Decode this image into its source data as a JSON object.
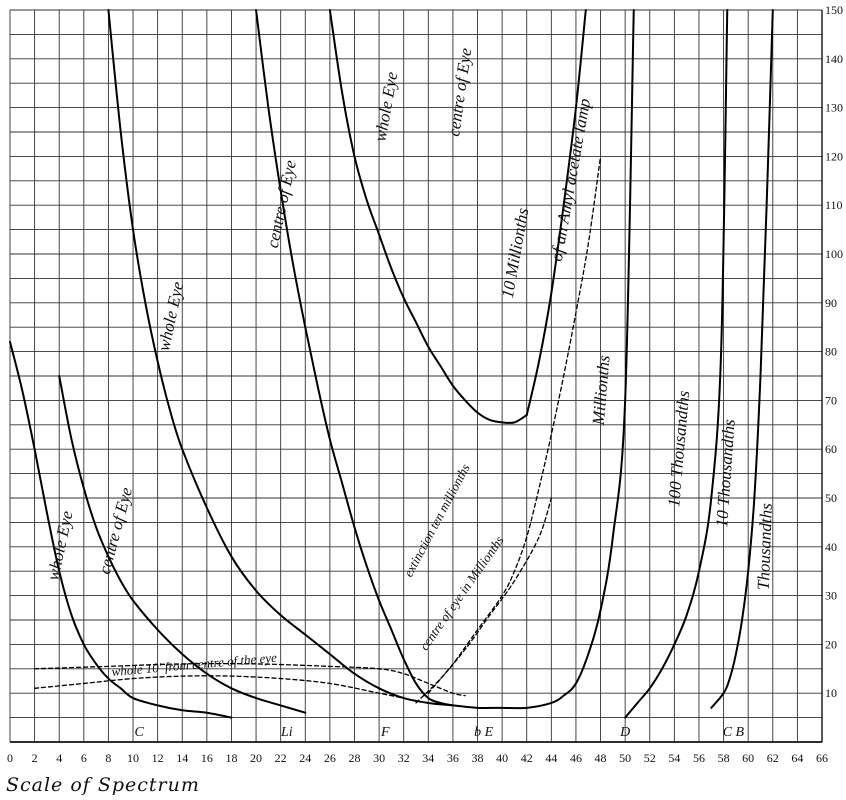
{
  "chart_data": {
    "type": "line",
    "xlabel": "Scale of Spectrum",
    "xlim": [
      0,
      66
    ],
    "ylim": [
      0,
      150
    ],
    "grid": true,
    "x_ticks": [
      0,
      2,
      4,
      6,
      8,
      10,
      12,
      14,
      16,
      18,
      20,
      22,
      24,
      26,
      28,
      30,
      32,
      34,
      36,
      38,
      40,
      42,
      44,
      46,
      48,
      50,
      52,
      54,
      56,
      58,
      60,
      62,
      64,
      66
    ],
    "y_ticks": [
      10,
      20,
      30,
      40,
      50,
      60,
      70,
      80,
      90,
      100,
      110,
      120,
      130,
      140,
      150
    ],
    "spectral_lines": [
      {
        "label": "C",
        "x": 10.5
      },
      {
        "label": "Li",
        "x": 22.5
      },
      {
        "label": "F",
        "x": 30.5
      },
      {
        "label": "b E",
        "x": 38.5
      },
      {
        "label": "D",
        "x": 50.0
      },
      {
        "label": "C B",
        "x": 58.8
      }
    ],
    "series": [
      {
        "label": "whole Eye",
        "style": "solid",
        "points": [
          [
            0,
            82
          ],
          [
            1,
            72
          ],
          [
            2,
            60
          ],
          [
            3,
            47
          ],
          [
            4,
            35
          ],
          [
            5,
            26
          ],
          [
            6,
            20
          ],
          [
            7,
            16
          ],
          [
            8,
            13
          ],
          [
            9,
            11
          ],
          [
            10,
            9
          ],
          [
            12,
            7.5
          ],
          [
            14,
            6.5
          ],
          [
            16,
            6
          ],
          [
            18,
            5
          ]
        ]
      },
      {
        "label": "centre of Eye",
        "style": "solid",
        "points": [
          [
            4,
            75
          ],
          [
            5,
            62
          ],
          [
            6,
            52
          ],
          [
            7,
            44
          ],
          [
            8,
            38
          ],
          [
            9,
            33
          ],
          [
            10,
            29
          ],
          [
            12,
            23
          ],
          [
            14,
            18
          ],
          [
            16,
            14
          ],
          [
            18,
            11
          ],
          [
            20,
            9
          ],
          [
            22,
            7.5
          ],
          [
            24,
            6
          ]
        ]
      },
      {
        "label": "whole Eye",
        "style": "solid",
        "points": [
          [
            8,
            150
          ],
          [
            9,
            125
          ],
          [
            10,
            105
          ],
          [
            11,
            90
          ],
          [
            12,
            78
          ],
          [
            13,
            68
          ],
          [
            14,
            60
          ],
          [
            16,
            48
          ],
          [
            18,
            38
          ],
          [
            20,
            31
          ],
          [
            22,
            26
          ],
          [
            24,
            22
          ],
          [
            26,
            18
          ],
          [
            28,
            14
          ],
          [
            30,
            11
          ],
          [
            32,
            9
          ],
          [
            34,
            8
          ],
          [
            36,
            7.5
          ],
          [
            38,
            7
          ],
          [
            40,
            7
          ],
          [
            42,
            7
          ],
          [
            44,
            8
          ],
          [
            45,
            9.5
          ],
          [
            46,
            12
          ],
          [
            47,
            18
          ],
          [
            48,
            27
          ],
          [
            49,
            42
          ],
          [
            50,
            70
          ],
          [
            50.7,
            150
          ]
        ]
      },
      {
        "label": "centre of Eye",
        "style": "solid",
        "points": [
          [
            20,
            150
          ],
          [
            21,
            130
          ],
          [
            22,
            113
          ],
          [
            23,
            98
          ],
          [
            24,
            85
          ],
          [
            25,
            73
          ],
          [
            26,
            62
          ],
          [
            27,
            53
          ],
          [
            28,
            44
          ],
          [
            29,
            36
          ],
          [
            30,
            29
          ],
          [
            31,
            23
          ],
          [
            32,
            17
          ],
          [
            33,
            12
          ],
          [
            34,
            9
          ],
          [
            35,
            8
          ],
          [
            36,
            7.5
          ]
        ]
      },
      {
        "label": "whole Eye",
        "style": "solid",
        "points": [
          [
            26,
            150
          ],
          [
            27,
            133
          ],
          [
            28,
            120
          ],
          [
            29,
            111
          ],
          [
            30,
            104
          ],
          [
            31,
            97
          ],
          [
            32,
            91
          ],
          [
            33,
            86
          ],
          [
            34,
            81
          ],
          [
            35,
            77
          ],
          [
            36,
            73
          ],
          [
            37,
            70
          ],
          [
            38,
            67.5
          ],
          [
            39,
            66
          ],
          [
            40,
            65.5
          ],
          [
            41,
            65.5
          ],
          [
            42,
            67
          ]
        ]
      },
      {
        "label": "centre of Eye",
        "style": "solid",
        "points": [
          [
            42,
            67
          ],
          [
            43,
            78
          ],
          [
            44,
            92
          ],
          [
            45,
            110
          ],
          [
            46,
            130
          ],
          [
            46.8,
            150
          ]
        ]
      },
      {
        "label": "100 Thousandths",
        "style": "solid",
        "points": [
          [
            50,
            5
          ],
          [
            51,
            8
          ],
          [
            52,
            11
          ],
          [
            53,
            15
          ],
          [
            54,
            20
          ],
          [
            55,
            26
          ],
          [
            56,
            35
          ],
          [
            57,
            50
          ],
          [
            57.8,
            80
          ],
          [
            58.3,
            150
          ]
        ]
      },
      {
        "label": "10 Thousandths",
        "style": "solid",
        "points": [
          [
            57,
            7
          ],
          [
            58,
            10
          ],
          [
            58.5,
            13
          ],
          [
            59,
            18
          ],
          [
            59.5,
            25
          ],
          [
            60,
            35
          ],
          [
            60.5,
            50
          ],
          [
            61,
            75
          ],
          [
            61.5,
            110
          ],
          [
            62,
            150
          ]
        ]
      },
      {
        "label": "",
        "style": "dashed",
        "points": [
          [
            2,
            11
          ],
          [
            6,
            12
          ],
          [
            10,
            13
          ],
          [
            14,
            13.5
          ],
          [
            18,
            13.5
          ],
          [
            22,
            13
          ],
          [
            26,
            12
          ],
          [
            30,
            10
          ],
          [
            32,
            9
          ]
        ]
      },
      {
        "label": "whole 10' from centre of the eye",
        "style": "dashed",
        "points": [
          [
            2,
            15
          ],
          [
            8,
            15.5
          ],
          [
            14,
            16
          ],
          [
            20,
            16
          ],
          [
            26,
            15.5
          ],
          [
            30,
            15
          ],
          [
            32,
            14
          ],
          [
            34,
            12
          ],
          [
            36,
            10
          ],
          [
            37,
            9.5
          ]
        ]
      },
      {
        "label": "extinction ten millionths",
        "style": "dashed",
        "points": [
          [
            34,
            10
          ],
          [
            36,
            16
          ],
          [
            38,
            23
          ],
          [
            40,
            30
          ],
          [
            41,
            35
          ],
          [
            42,
            42
          ],
          [
            43,
            52
          ],
          [
            44,
            63
          ],
          [
            45,
            75
          ],
          [
            46,
            88
          ],
          [
            47,
            102
          ],
          [
            48,
            120
          ]
        ]
      },
      {
        "label": "centre of eye in Millionths",
        "style": "dashed",
        "points": [
          [
            33,
            8
          ],
          [
            35,
            13
          ],
          [
            37,
            19
          ],
          [
            39,
            26
          ],
          [
            41,
            33
          ],
          [
            43,
            42
          ],
          [
            44,
            50
          ]
        ]
      }
    ],
    "labels": [
      {
        "text": "whole Eye",
        "x": 4.5,
        "y": 40,
        "rotate": -78
      },
      {
        "text": "centre of Eye",
        "x": 9,
        "y": 43,
        "rotate": -75
      },
      {
        "text": "whole Eye",
        "x": 13.5,
        "y": 87,
        "rotate": -78
      },
      {
        "text": "centre of Eye",
        "x": 22.5,
        "y": 110,
        "rotate": -78
      },
      {
        "text": "whole Eye",
        "x": 31,
        "y": 130,
        "rotate": -80
      },
      {
        "text": "centre of Eye",
        "x": 37,
        "y": 133,
        "rotate": -82
      },
      {
        "text": "10 Millionths",
        "x": 41.5,
        "y": 100,
        "rotate": -80
      },
      {
        "text": "of an Amyl acetate lamp",
        "x": 46,
        "y": 115,
        "rotate": -80
      },
      {
        "text": "Millionths",
        "x": 48.5,
        "y": 72,
        "rotate": -85
      },
      {
        "text": "100 Thousandths",
        "x": 54.8,
        "y": 60,
        "rotate": -85
      },
      {
        "text": "10 Thousandths",
        "x": 58.6,
        "y": 55,
        "rotate": -86
      },
      {
        "text": "Thousandths",
        "x": 61.8,
        "y": 40,
        "rotate": -88
      },
      {
        "text": "whole 10' from centre of the eye",
        "x": 15,
        "y": 15,
        "rotate": -5
      },
      {
        "text": "extinction ten millionths",
        "x": 35,
        "y": 45,
        "rotate": -62
      },
      {
        "text": "centre of eye in Millionths",
        "x": 37,
        "y": 30,
        "rotate": -55
      }
    ]
  }
}
